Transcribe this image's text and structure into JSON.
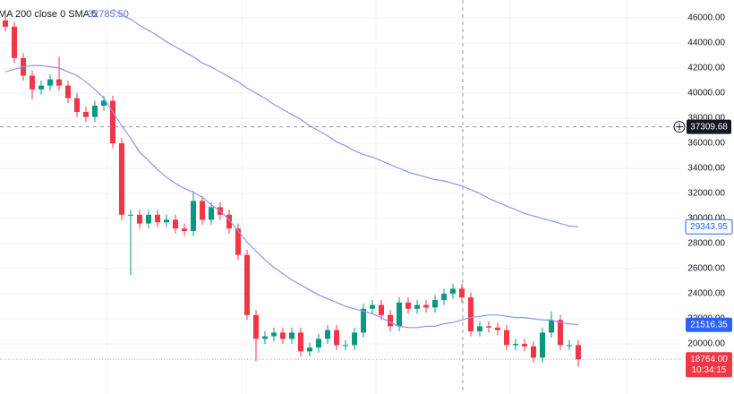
{
  "chart_data": {
    "type": "candlestick",
    "legend_text": "MA 200 close 0 SMA 5",
    "legend_value": "32785.50",
    "open": [
      45800,
      45300,
      42800,
      41400,
      40300,
      40600,
      41100,
      40600,
      39600,
      38500,
      38100,
      39000,
      39400,
      36000,
      30300,
      30300,
      29600,
      30300,
      29700,
      29900,
      29200,
      29000,
      31400,
      29900,
      30900,
      30300,
      29200,
      27100,
      22300,
      20400,
      20600,
      20900,
      20400,
      20900,
      19400,
      19700,
      20400,
      21100,
      19900,
      19900,
      20900,
      22800,
      23100,
      22300,
      21400,
      23300,
      22800,
      23100,
      22900,
      23500,
      24000,
      24400,
      23700,
      21000,
      21400,
      21300,
      21100,
      19900,
      20000,
      19800,
      18900,
      20900,
      21900,
      19900,
      19900
    ],
    "high": [
      46300,
      45700,
      43200,
      41800,
      41000,
      41500,
      42900,
      41000,
      40000,
      38900,
      39400,
      39800,
      39800,
      36400,
      30700,
      30700,
      30700,
      30700,
      30300,
      30300,
      29600,
      32200,
      31800,
      31300,
      31300,
      30700,
      29600,
      27500,
      22700,
      21000,
      21300,
      21300,
      21300,
      21300,
      20100,
      20800,
      21500,
      21500,
      20300,
      21300,
      23200,
      23500,
      23500,
      22700,
      23700,
      23700,
      23500,
      23500,
      23900,
      24400,
      24800,
      24800,
      24100,
      21800,
      21800,
      21700,
      21500,
      20400,
      20400,
      20200,
      21300,
      22600,
      22300,
      20300,
      20300
    ],
    "low": [
      44900,
      42400,
      41000,
      39500,
      39900,
      40200,
      40200,
      39200,
      38100,
      37700,
      37700,
      38600,
      35600,
      29900,
      25500,
      29200,
      29200,
      29300,
      29300,
      28800,
      28600,
      28600,
      29500,
      29500,
      29900,
      28800,
      26700,
      21900,
      18600,
      20000,
      20200,
      20000,
      20000,
      19000,
      19000,
      19300,
      20000,
      19500,
      19500,
      19500,
      20500,
      22400,
      21900,
      21000,
      21000,
      22400,
      22400,
      22500,
      22500,
      23100,
      23600,
      23300,
      20600,
      20600,
      20900,
      20700,
      19500,
      19500,
      19400,
      18500,
      18500,
      20500,
      19500,
      19500,
      18200
    ],
    "close": [
      45300,
      42800,
      41400,
      40300,
      40600,
      41100,
      40600,
      39600,
      38500,
      38100,
      39000,
      39400,
      36000,
      30300,
      30300,
      29600,
      30300,
      29700,
      29900,
      29200,
      29000,
      31400,
      29900,
      30900,
      30300,
      29200,
      27100,
      22300,
      20400,
      20600,
      20900,
      20400,
      20900,
      19400,
      19700,
      20400,
      21100,
      19900,
      19900,
      20900,
      22800,
      23100,
      22300,
      21400,
      23300,
      22800,
      23100,
      22900,
      23500,
      24000,
      24400,
      23700,
      21000,
      21400,
      21300,
      21100,
      19900,
      20000,
      19800,
      18900,
      20900,
      21900,
      19900,
      19900,
      18764
    ],
    "close_label": "18764.00",
    "countdown": "10:34:15",
    "up_color": "#089981",
    "down_color": "#f23645",
    "series": [
      {
        "color": "#8f95f3",
        "values": [
          41700,
          41900,
          42100,
          42200,
          42200,
          42100,
          42000,
          41700,
          41400,
          40900,
          40300,
          39600,
          38500,
          37400,
          36400,
          35300,
          34600,
          33900,
          33300,
          32800,
          32400,
          32100,
          31700,
          31100,
          30600,
          29900,
          29000,
          28100,
          27400,
          26700,
          26100,
          25600,
          25100,
          24700,
          24300,
          23900,
          23600,
          23300,
          23000,
          22800,
          22600,
          22400,
          22100,
          21700,
          21400,
          21300,
          21300,
          21400,
          21400,
          21600,
          21700,
          21900,
          22100,
          22200,
          22300,
          22300,
          22200,
          22100,
          22100,
          22000,
          21900,
          21900,
          21700,
          21600,
          21516.35
        ]
      },
      {
        "color": "#8f95f3",
        "values": [
          null,
          null,
          null,
          null,
          null,
          null,
          null,
          null,
          null,
          null,
          null,
          null,
          46700,
          46200,
          45900,
          45400,
          45000,
          44600,
          44100,
          43700,
          43300,
          42900,
          42400,
          42100,
          41700,
          41300,
          40900,
          40400,
          40000,
          39600,
          39100,
          38700,
          38300,
          37900,
          37400,
          37000,
          36600,
          36100,
          35800,
          35400,
          35100,
          34900,
          34600,
          34300,
          34000,
          33700,
          33500,
          33300,
          33100,
          33000,
          32800,
          32600,
          32300,
          32000,
          31600,
          31300,
          31000,
          30700,
          30400,
          30200,
          30000,
          29800,
          29600,
          29400,
          29343.95
        ]
      }
    ],
    "crosshair_price": 37309.68,
    "ylim": [
      16000,
      47430
    ],
    "yticks": [
      {
        "value": 20000,
        "label": "20000.00"
      },
      {
        "value": 22000,
        "label": "22000.00"
      },
      {
        "value": 24000,
        "label": "24000.00"
      },
      {
        "value": 26000,
        "label": "26000.00"
      },
      {
        "value": 28000,
        "label": "28000.00"
      },
      {
        "value": 30000,
        "label": "30000.00"
      },
      {
        "value": 32000,
        "label": "32000.00"
      },
      {
        "value": 34000,
        "label": "34000.00"
      },
      {
        "value": 36000,
        "label": "36000.00"
      },
      {
        "value": 38000,
        "label": "38000.00"
      },
      {
        "value": 40000,
        "label": "40000.00"
      },
      {
        "value": 42000,
        "label": "42000.00"
      },
      {
        "value": 44000,
        "label": "44000.00"
      },
      {
        "value": 46000,
        "label": "46000.00"
      }
    ],
    "grid": true
  }
}
